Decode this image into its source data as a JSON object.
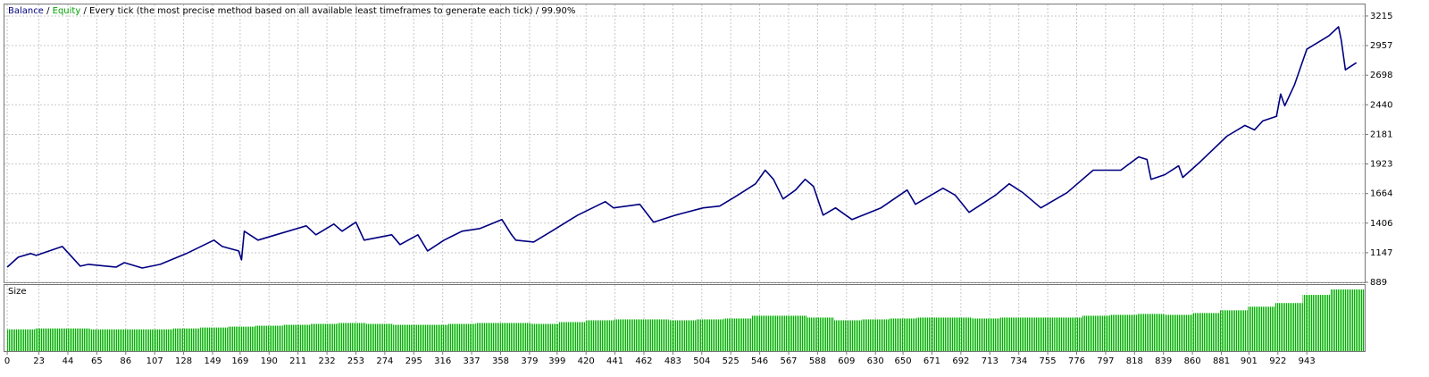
{
  "chart_data": [
    {
      "type": "line",
      "header": {
        "balance": "Balance",
        "equity": "Equity",
        "separator": "/",
        "model": "Every tick (the most precise method based on all available least timeframes to generate each tick)",
        "quality": "99.90%"
      },
      "x": [
        0,
        8,
        17,
        21,
        40,
        43,
        53,
        59,
        79,
        85,
        98,
        111,
        130,
        150,
        156,
        168,
        170,
        172,
        182,
        195,
        217,
        224,
        237,
        243,
        253,
        259,
        279,
        285,
        298,
        305,
        317,
        330,
        343,
        359,
        366,
        369,
        382,
        395,
        414,
        434,
        440,
        459,
        469,
        485,
        505,
        517,
        530,
        543,
        550,
        556,
        563,
        572,
        579,
        585,
        592,
        601,
        613,
        634,
        653,
        659,
        679,
        688,
        698,
        717,
        727,
        737,
        750,
        769,
        788,
        808,
        821,
        827,
        830,
        840,
        850,
        853,
        866,
        885,
        898,
        905,
        911,
        921,
        924,
        927,
        934,
        943,
        959,
        966,
        968,
        971,
        979
      ],
      "series": [
        {
          "name": "Balance",
          "color": "#000080",
          "values": [
            1022,
            1108,
            1140,
            1124,
            1202,
            1163,
            1030,
            1046,
            1022,
            1061,
            1014,
            1046,
            1140,
            1257,
            1202,
            1163,
            1085,
            1335,
            1257,
            1304,
            1382,
            1304,
            1398,
            1335,
            1414,
            1257,
            1304,
            1218,
            1304,
            1163,
            1257,
            1335,
            1359,
            1437,
            1304,
            1257,
            1241,
            1335,
            1476,
            1594,
            1539,
            1570,
            1414,
            1476,
            1539,
            1555,
            1649,
            1750,
            1868,
            1789,
            1617,
            1695,
            1789,
            1727,
            1476,
            1539,
            1437,
            1539,
            1695,
            1570,
            1711,
            1649,
            1500,
            1649,
            1750,
            1672,
            1539,
            1672,
            1868,
            1868,
            1985,
            1962,
            1789,
            1829,
            1907,
            1805,
            1946,
            2165,
            2259,
            2220,
            2298,
            2338,
            2533,
            2431,
            2612,
            2925,
            3042,
            3121,
            3003,
            2745,
            2807
          ]
        }
      ],
      "xlim": [
        -2,
        985
      ],
      "ylim": [
        889,
        3316
      ],
      "yticks": [
        3215,
        2957,
        2698,
        2440,
        2181,
        1923,
        1664,
        1406,
        1147,
        889
      ],
      "grid": true
    },
    {
      "type": "bar",
      "title": "Size",
      "color": "#00b000",
      "x": [
        0,
        20,
        40,
        60,
        80,
        100,
        120,
        140,
        160,
        180,
        200,
        220,
        240,
        260,
        280,
        300,
        320,
        340,
        360,
        380,
        400,
        420,
        440,
        460,
        480,
        500,
        520,
        540,
        560,
        580,
        600,
        620,
        640,
        660,
        680,
        700,
        720,
        740,
        760,
        780,
        800,
        820,
        840,
        860,
        880,
        900,
        920,
        940,
        960
      ],
      "values": [
        0.24,
        0.25,
        0.25,
        0.24,
        0.24,
        0.24,
        0.25,
        0.26,
        0.27,
        0.28,
        0.29,
        0.3,
        0.31,
        0.3,
        0.29,
        0.29,
        0.3,
        0.31,
        0.31,
        0.3,
        0.32,
        0.34,
        0.35,
        0.35,
        0.34,
        0.35,
        0.36,
        0.39,
        0.39,
        0.37,
        0.34,
        0.35,
        0.36,
        0.37,
        0.37,
        0.36,
        0.37,
        0.37,
        0.37,
        0.39,
        0.4,
        0.41,
        0.4,
        0.42,
        0.45,
        0.49,
        0.53,
        0.62,
        0.68
      ],
      "xlim": [
        -2,
        985
      ],
      "xticks": [
        0,
        23,
        44,
        65,
        86,
        107,
        128,
        149,
        169,
        190,
        211,
        232,
        253,
        274,
        295,
        316,
        337,
        358,
        379,
        399,
        420,
        441,
        462,
        483,
        504,
        525,
        546,
        567,
        588,
        609,
        630,
        650,
        671,
        692,
        713,
        734,
        755,
        776,
        797,
        818,
        839,
        860,
        881,
        901,
        922,
        943
      ],
      "grid": true
    }
  ]
}
